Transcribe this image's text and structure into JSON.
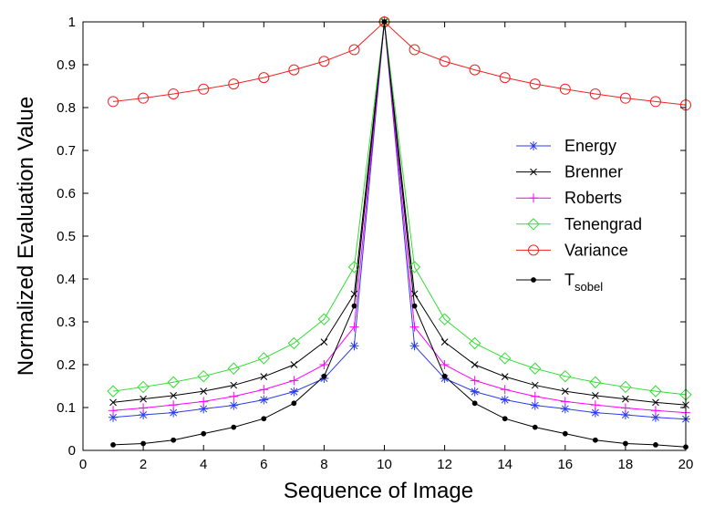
{
  "chart_data": {
    "type": "line",
    "title": "",
    "xlabel": "Sequence of Image",
    "ylabel": "Normalized Evaluation Value",
    "xlim": [
      0,
      20
    ],
    "ylim": [
      0,
      1
    ],
    "xticks": [
      0,
      2,
      4,
      6,
      8,
      10,
      12,
      14,
      16,
      18,
      20
    ],
    "yticks": [
      0,
      0.1,
      0.2,
      0.3,
      0.4,
      0.5,
      0.6,
      0.7,
      0.8,
      0.9,
      1
    ],
    "x": [
      1,
      2,
      3,
      4,
      5,
      6,
      7,
      8,
      9,
      10,
      11,
      12,
      13,
      14,
      15,
      16,
      17,
      18,
      19,
      20
    ],
    "grid": false,
    "legend_position": "right",
    "series": [
      {
        "name": "Energy",
        "color": "#2a3cf0",
        "marker": "asterisk",
        "values": [
          0.077,
          0.083,
          0.088,
          0.097,
          0.105,
          0.118,
          0.137,
          0.168,
          0.244,
          1.0,
          0.244,
          0.168,
          0.137,
          0.118,
          0.105,
          0.097,
          0.088,
          0.083,
          0.077,
          0.073
        ]
      },
      {
        "name": "Brenner",
        "color": "#000000",
        "marker": "x",
        "values": [
          0.112,
          0.12,
          0.128,
          0.138,
          0.152,
          0.172,
          0.2,
          0.253,
          0.365,
          1.0,
          0.365,
          0.253,
          0.2,
          0.172,
          0.152,
          0.138,
          0.128,
          0.12,
          0.112,
          0.106
        ]
      },
      {
        "name": "Roberts",
        "color": "#ff00ff",
        "marker": "plus",
        "values": [
          0.093,
          0.099,
          0.106,
          0.114,
          0.126,
          0.142,
          0.163,
          0.2,
          0.288,
          1.0,
          0.288,
          0.2,
          0.163,
          0.142,
          0.126,
          0.114,
          0.106,
          0.099,
          0.093,
          0.088
        ]
      },
      {
        "name": "Tenengrad",
        "color": "#33dd33",
        "marker": "diamond",
        "values": [
          0.138,
          0.148,
          0.159,
          0.173,
          0.191,
          0.215,
          0.25,
          0.306,
          0.428,
          1.0,
          0.428,
          0.306,
          0.25,
          0.215,
          0.191,
          0.173,
          0.159,
          0.148,
          0.138,
          0.13
        ]
      },
      {
        "name": "Variance",
        "color": "#ee2222",
        "marker": "circle",
        "values": [
          0.814,
          0.822,
          0.832,
          0.843,
          0.855,
          0.87,
          0.888,
          0.908,
          0.935,
          1.0,
          0.935,
          0.908,
          0.888,
          0.87,
          0.855,
          0.843,
          0.832,
          0.822,
          0.814,
          0.806
        ]
      },
      {
        "name": "T",
        "name_subscript": "sobel",
        "color": "#000000",
        "marker": "dot",
        "values": [
          0.013,
          0.016,
          0.024,
          0.039,
          0.054,
          0.074,
          0.11,
          0.173,
          0.337,
          1.0,
          0.337,
          0.173,
          0.11,
          0.074,
          0.054,
          0.039,
          0.024,
          0.016,
          0.013,
          0.008
        ]
      }
    ]
  }
}
